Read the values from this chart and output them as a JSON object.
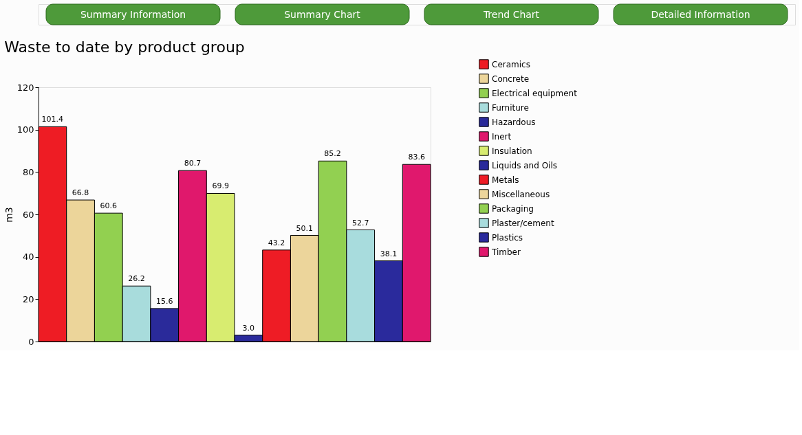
{
  "chart_data": {
    "type": "bar",
    "title": "Waste to date by product group",
    "ylabel": "m3",
    "annotations": [
      "Summary Information",
      "Summary Chart",
      "Trend Chart",
      "Detailed Information"
    ],
    "categories": [
      null,
      null,
      null,
      null,
      null,
      null,
      null,
      null,
      null,
      null,
      null,
      null,
      null,
      null
    ],
    "series": [
      {
        "name": "Ceramics",
        "color": "#ee1c24",
        "values": [
          101.4,
          null,
          null,
          null,
          null,
          null,
          null,
          null,
          null,
          null,
          null,
          null,
          null,
          null
        ],
        "value_labels": [
          "101.4",
          null,
          null,
          null,
          null,
          null,
          null,
          null,
          null,
          null,
          null,
          null,
          null,
          null
        ]
      },
      {
        "name": "Concrete",
        "color": "#ecd59a",
        "values": [
          null,
          66.8,
          null,
          null,
          null,
          null,
          null,
          null,
          null,
          null,
          null,
          null,
          null,
          null
        ],
        "value_labels": [
          null,
          "66.8",
          null,
          null,
          null,
          null,
          null,
          null,
          null,
          null,
          null,
          null,
          null,
          null
        ]
      },
      {
        "name": "Electrical equipment",
        "color": "#92d050",
        "values": [
          null,
          null,
          60.6,
          null,
          null,
          null,
          null,
          null,
          null,
          null,
          null,
          null,
          null,
          null
        ],
        "value_labels": [
          null,
          null,
          "60.6",
          null,
          null,
          null,
          null,
          null,
          null,
          null,
          null,
          null,
          null,
          null
        ]
      },
      {
        "name": "Furniture",
        "color": "#a8dcdc",
        "values": [
          null,
          null,
          null,
          26.2,
          null,
          null,
          null,
          null,
          null,
          null,
          null,
          null,
          null,
          null
        ],
        "value_labels": [
          null,
          null,
          null,
          "26.2",
          null,
          null,
          null,
          null,
          null,
          null,
          null,
          null,
          null,
          null
        ]
      },
      {
        "name": "Hazardous",
        "color": "#2a2a9a",
        "values": [
          null,
          null,
          null,
          null,
          15.6,
          null,
          null,
          null,
          null,
          null,
          null,
          null,
          null,
          null
        ],
        "value_labels": [
          null,
          null,
          null,
          null,
          "15.6",
          null,
          null,
          null,
          null,
          null,
          null,
          null,
          null,
          null
        ]
      },
      {
        "name": "Inert",
        "color": "#e0186c",
        "values": [
          null,
          null,
          null,
          null,
          null,
          80.7,
          null,
          null,
          null,
          null,
          null,
          null,
          null,
          null
        ],
        "value_labels": [
          null,
          null,
          null,
          null,
          null,
          "80.7",
          null,
          null,
          null,
          null,
          null,
          null,
          null,
          null
        ]
      },
      {
        "name": "Insulation",
        "color": "#d8ec70",
        "values": [
          null,
          null,
          null,
          null,
          null,
          null,
          69.9,
          null,
          null,
          null,
          null,
          null,
          null,
          null
        ],
        "value_labels": [
          null,
          null,
          null,
          null,
          null,
          null,
          "69.9",
          null,
          null,
          null,
          null,
          null,
          null,
          null
        ]
      },
      {
        "name": "Liquids and Oils",
        "color": "#2a2a9b",
        "values": [
          null,
          null,
          null,
          null,
          null,
          null,
          null,
          3.0,
          null,
          null,
          null,
          null,
          null,
          null
        ],
        "value_labels": [
          null,
          null,
          null,
          null,
          null,
          null,
          null,
          "3.0",
          null,
          null,
          null,
          null,
          null,
          null
        ]
      },
      {
        "name": "Metals",
        "color": "#ee1c25",
        "values": [
          null,
          null,
          null,
          null,
          null,
          null,
          null,
          null,
          43.2,
          null,
          null,
          null,
          null,
          null
        ],
        "value_labels": [
          null,
          null,
          null,
          null,
          null,
          null,
          null,
          null,
          "43.2",
          null,
          null,
          null,
          null,
          null
        ]
      },
      {
        "name": "Miscellaneous",
        "color": "#ecd59b",
        "values": [
          null,
          null,
          null,
          null,
          null,
          null,
          null,
          null,
          null,
          50.1,
          null,
          null,
          null,
          null
        ],
        "value_labels": [
          null,
          null,
          null,
          null,
          null,
          null,
          null,
          null,
          null,
          "50.1",
          null,
          null,
          null,
          null
        ]
      },
      {
        "name": "Packaging",
        "color": "#92d051",
        "values": [
          null,
          null,
          null,
          null,
          null,
          null,
          null,
          null,
          null,
          null,
          85.2,
          null,
          null,
          null
        ],
        "value_labels": [
          null,
          null,
          null,
          null,
          null,
          null,
          null,
          null,
          null,
          null,
          "85.2",
          null,
          null,
          null
        ]
      },
      {
        "name": "Plaster/cement",
        "color": "#a8dcdd",
        "values": [
          null,
          null,
          null,
          null,
          null,
          null,
          null,
          null,
          null,
          null,
          null,
          52.7,
          null,
          null
        ],
        "value_labels": [
          null,
          null,
          null,
          null,
          null,
          null,
          null,
          null,
          null,
          null,
          null,
          "52.7",
          null,
          null
        ]
      },
      {
        "name": "Plastics",
        "color": "#2a2a9c",
        "values": [
          null,
          null,
          null,
          null,
          null,
          null,
          null,
          null,
          null,
          null,
          null,
          null,
          38.1,
          null
        ],
        "value_labels": [
          null,
          null,
          null,
          null,
          null,
          null,
          null,
          null,
          null,
          null,
          null,
          null,
          "38.1",
          null
        ]
      },
      {
        "name": "Timber",
        "color": "#e0186d",
        "values": [
          null,
          null,
          null,
          null,
          null,
          null,
          null,
          null,
          null,
          null,
          null,
          null,
          null,
          83.6
        ],
        "value_labels": [
          null,
          null,
          null,
          null,
          null,
          null,
          null,
          null,
          null,
          null,
          null,
          null,
          null,
          "83.6"
        ]
      }
    ],
    "ylim": [
      0,
      120
    ],
    "yticks": [
      0,
      20,
      40,
      60,
      80,
      100,
      120
    ],
    "legend": "right",
    "tick_labels": "y",
    "grid": false
  }
}
